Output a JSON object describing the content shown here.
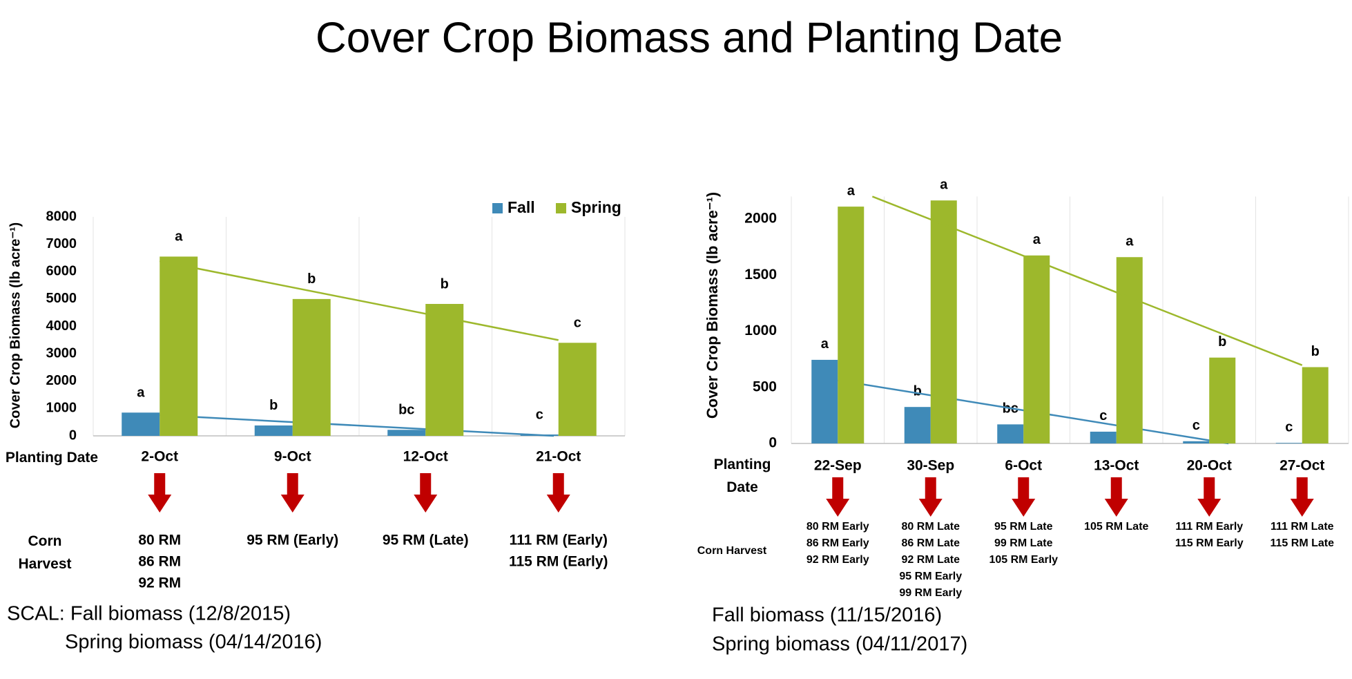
{
  "title": "Cover Crop Biomass and Planting Date",
  "chart_data": [
    {
      "type": "bar",
      "y_label": "Cover Crop Biomass (lb acre⁻¹)",
      "x_label": "Planting Date",
      "categories": [
        "2-Oct",
        "9-Oct",
        "12-Oct",
        "21-Oct"
      ],
      "series": [
        {
          "name": "Fall",
          "color": "#3f8ab8",
          "values": [
            850,
            380,
            220,
            50
          ],
          "letters": [
            "a",
            "b",
            "bc",
            "c"
          ]
        },
        {
          "name": "Spring",
          "color": "#9db82c",
          "values": [
            6550,
            5000,
            4820,
            3400
          ],
          "letters": [
            "a",
            "b",
            "b",
            "c"
          ]
        }
      ],
      "ylim": [
        0,
        8000
      ],
      "yticks": [
        0,
        1000,
        2000,
        3000,
        4000,
        5000,
        6000,
        7000,
        8000
      ],
      "grid": true,
      "trendline": true,
      "legend": "top-right",
      "harvest_label": "Corn Harvest",
      "harvest": [
        [
          "80 RM",
          "86 RM",
          "92 RM"
        ],
        [
          "95 RM (Early)"
        ],
        [
          "95 RM (Late)"
        ],
        [
          "111 RM (Early)",
          "115 RM (Early)"
        ]
      ],
      "notes": [
        "SCAL: Fall biomass (12/8/2015)",
        "Spring biomass (04/14/2016)"
      ]
    },
    {
      "type": "bar",
      "y_label": "Cover Crop Biomass (lb acre⁻¹)",
      "x_label": "Planting Date",
      "categories": [
        "22-Sep",
        "30-Sep",
        "6-Oct",
        "13-Oct",
        "20-Oct",
        "27-Oct"
      ],
      "series": [
        {
          "color": "#3f8ab8",
          "values": [
            745,
            325,
            170,
            105,
            20,
            5
          ],
          "letters": [
            "a",
            "b",
            "bc",
            "c",
            "c",
            "c"
          ]
        },
        {
          "color": "#9db82c",
          "values": [
            2110,
            2165,
            1675,
            1660,
            765,
            680
          ],
          "letters": [
            "a",
            "a",
            "a",
            "a",
            "b",
            "b"
          ]
        }
      ],
      "ylim": [
        0,
        2200
      ],
      "yticks": [
        0,
        500,
        1000,
        1500,
        2000
      ],
      "grid": true,
      "trendline": true,
      "harvest_label": "Corn Harvest",
      "harvest": [
        [
          "80 RM Early",
          "86 RM Early",
          "92 RM Early"
        ],
        [
          "80 RM Late",
          "86 RM Late",
          "92 RM Late",
          "95 RM Early",
          "99 RM Early"
        ],
        [
          "95 RM Late",
          "99 RM Late",
          "105 RM Early"
        ],
        [
          "105 RM Late"
        ],
        [
          "111 RM Early",
          "115 RM Early"
        ],
        [
          "111 RM Late",
          "115 RM Late"
        ]
      ],
      "notes": [
        "Fall biomass (11/15/2016)",
        "Spring biomass (04/11/2017)"
      ]
    }
  ]
}
